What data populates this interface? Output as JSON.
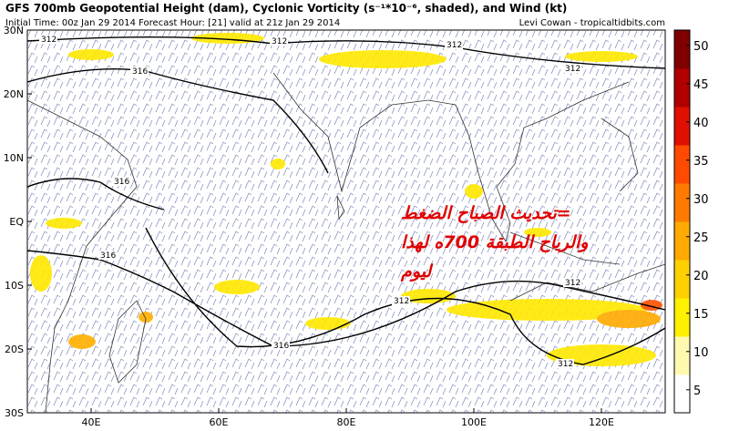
{
  "header": {
    "title": "GFS 700mb Geopotential Height (dam), Cyclonic Vorticity (s⁻¹*10⁻⁶, shaded), and Wind (kt)",
    "subtitle": "Initial Time: 00z Jan 29 2014 Forecast Hour: [21] valid at 21z Jan 29 2014",
    "credit": "Levi Cowan - tropicaltidbits.com"
  },
  "map": {
    "lonlim": [
      30,
      130
    ],
    "latlim": [
      -30,
      30
    ],
    "lonticks": [
      {
        "value": 40,
        "label": "40E"
      },
      {
        "value": 60,
        "label": "60E"
      },
      {
        "value": 80,
        "label": "80E"
      },
      {
        "value": 100,
        "label": "100E"
      },
      {
        "value": 120,
        "label": "120E"
      }
    ],
    "latticks": [
      {
        "value": 30,
        "label": "30N"
      },
      {
        "value": 20,
        "label": "20N"
      },
      {
        "value": 10,
        "label": "10N"
      },
      {
        "value": 0,
        "label": "EQ"
      },
      {
        "value": -10,
        "label": "10S"
      },
      {
        "value": -20,
        "label": "20S"
      },
      {
        "value": -30,
        "label": "30S"
      }
    ],
    "contour_labels": [
      312,
      312,
      316,
      312,
      316,
      316,
      312,
      316,
      312,
      312,
      312
    ],
    "annotation": [
      "=تحديث الصباح الضغط",
      "والرياح الطبقة 700ه لهذا",
      "ليوم"
    ]
  },
  "colorbar": {
    "lim": [
      2,
      52
    ],
    "ticks": [
      5,
      10,
      15,
      20,
      25,
      30,
      35,
      40,
      45,
      50
    ],
    "colors": [
      "#ffffff",
      "#fff9b0",
      "#fff000",
      "#ffd000",
      "#ffaa00",
      "#ff7a00",
      "#ff4a00",
      "#e01000",
      "#b00000",
      "#800000"
    ]
  }
}
